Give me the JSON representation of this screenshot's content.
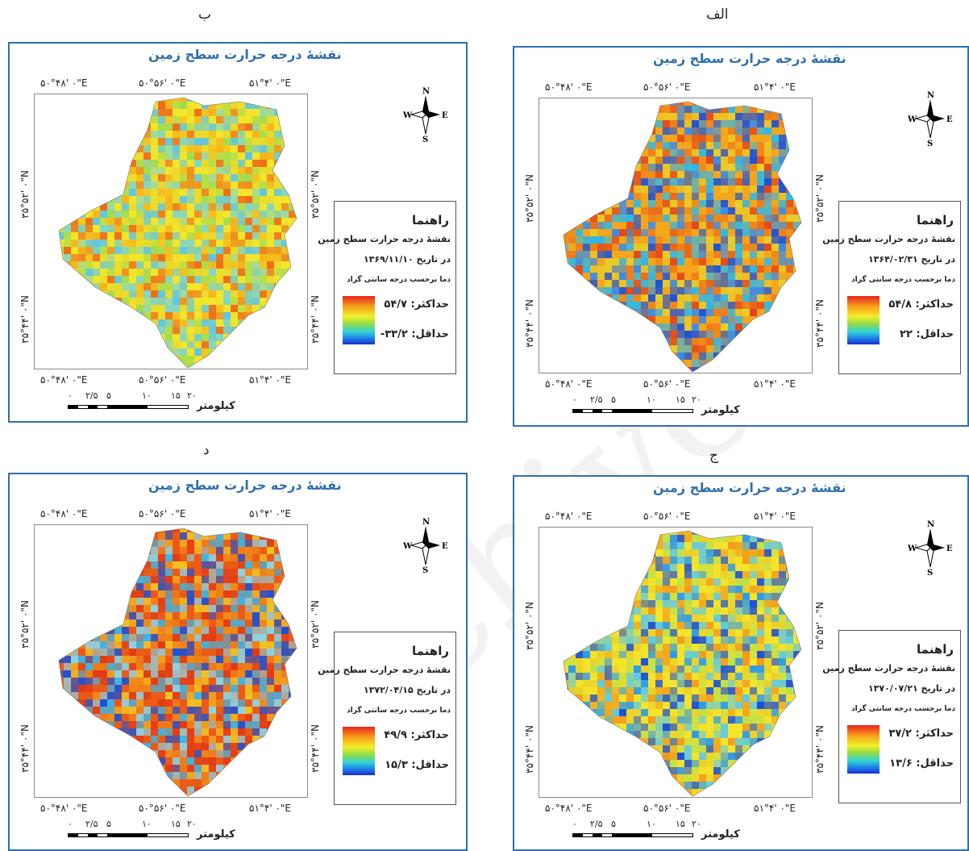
{
  "panels": [
    {
      "id": "b",
      "caption": "ب",
      "title": "نقشهٔ درجه حرارت سطح زمین",
      "coords_top": [
        "۵۰°۴۸' ۰\"E",
        "۵۰°۵۶' ۰\"E",
        "۵۱°۴' ۰\"E"
      ],
      "coords_bottom": [
        "۵۰°۴۸' ۰\"E",
        "۵۰°۵۶' ۰\"E",
        "۵۱°۴' ۰\"E"
      ],
      "coords_side": [
        "۳۵°۵۲' ۰\"N",
        "۳۵°۴۴' ۰\"N"
      ],
      "legend": {
        "heading": "راهنما",
        "line1": "نقشهٔ درجه حرارت سطح زمین",
        "line2": "در تاریخ ۱۳۶۹/۱۱/۱۰",
        "line3": "دما برحسب درجه سانتی گراد",
        "max": "حداکثر: ۵۴/۷",
        "min": "حداقل: ۳۳/۲-"
      },
      "scale": {
        "labels": [
          "۰",
          "۲/۵",
          "۵",
          "۱۰",
          "۱۵",
          "۲۰"
        ],
        "unit": "کیلومتر"
      },
      "map_palette": "mixed-yellow-cyan"
    },
    {
      "id": "alef",
      "caption": "الف",
      "title": "نقشهٔ درجه حرارت سطح زمین",
      "coords_top": [
        "۵۰°۴۸' ۰\"E",
        "۵۰°۵۶' ۰\"E",
        "۵۱°۴' ۰\"E"
      ],
      "coords_bottom": [
        "۵۰°۴۸' ۰\"E",
        "۵۰°۵۶' ۰\"E",
        "۵۱°۴' ۰\"E"
      ],
      "coords_side": [
        "۳۵°۵۲' ۰\"N",
        "۳۵°۴۴' ۰\"N"
      ],
      "legend": {
        "heading": "راهنما",
        "line1": "نقشهٔ درجه حرارت سطح زمین",
        "line2": "در تاریخ ۱۳۶۴/۰۲/۳۱",
        "line3": "دما برحسب درجه سانتی گراد",
        "max": "حداکثر: ۵۴/۸",
        "min": "حداقل: ۲۲"
      },
      "scale": {
        "labels": [
          "۰",
          "۲/۵",
          "۵",
          "۱۰",
          "۱۵",
          "۲۰"
        ],
        "unit": "کیلومتر"
      },
      "map_palette": "orange-blue"
    },
    {
      "id": "dal",
      "caption": "د",
      "title": "نقشهٔ درجه حرارت سطح زمین",
      "coords_top": [
        "۵۰°۴۸' ۰\"E",
        "۵۰°۵۶' ۰\"E",
        "۵۱°۴' ۰\"E"
      ],
      "coords_bottom": [
        "۵۰°۴۸' ۰\"E",
        "۵۰°۵۶' ۰\"E",
        "۵۱°۴' ۰\"E"
      ],
      "coords_side": [
        "۳۵°۵۲' ۰\"N",
        "۳۵°۴۴' ۰\"N"
      ],
      "legend": {
        "heading": "راهنما",
        "line1": "نقشهٔ درجه حرارت سطح زمین",
        "line2": "در تاریخ ۱۳۷۲/۰۴/۱۵",
        "line3": "دما برحسب درجه سانتی گراد",
        "max": "حداکثر: ۴۹/۹",
        "min": "حداقل: ۱۵/۳"
      },
      "scale": {
        "labels": [
          "۰",
          "۲/۵",
          "۵",
          "۱۰",
          "۱۵",
          "۲۰"
        ],
        "unit": "کیلومتر"
      },
      "map_palette": "red-cyan"
    },
    {
      "id": "jim",
      "caption": "ج",
      "title": "نقشهٔ درجه حرارت سطح زمین",
      "coords_top": [
        "۵۰°۴۸' ۰\"E",
        "۵۰°۵۶' ۰\"E",
        "۵۱°۴' ۰\"E"
      ],
      "coords_bottom": [
        "۵۰°۴۸' ۰\"E",
        "۵۰°۵۶' ۰\"E",
        "۵۱°۴' ۰\"E"
      ],
      "coords_side": [
        "۳۵°۵۲' ۰\"N",
        "۳۵°۴۴' ۰\"N"
      ],
      "legend": {
        "heading": "راهنما",
        "line1": "نقشهٔ درجه حرارت سطح زمین",
        "line2": "در تاریخ ۱۳۷۰/۰۷/۲۱",
        "line3": "دما برحسب درجه سانتی گراد",
        "max": "حداکثر: ۳۷/۲",
        "min": "حداقل: ۱۳/۶"
      },
      "scale": {
        "labels": [
          "۰",
          "۲/۵",
          "۵",
          "۱۰",
          "۱۵",
          "۲۰"
        ],
        "unit": "کیلومتر"
      },
      "map_palette": "yellow-blue"
    }
  ],
  "compass_letters": {
    "n": "N",
    "s": "S",
    "e": "E",
    "w": "W"
  },
  "watermark": "Archive of SID",
  "colors": {
    "frame": "#2e6fb0",
    "title": "#2e6fb0"
  }
}
